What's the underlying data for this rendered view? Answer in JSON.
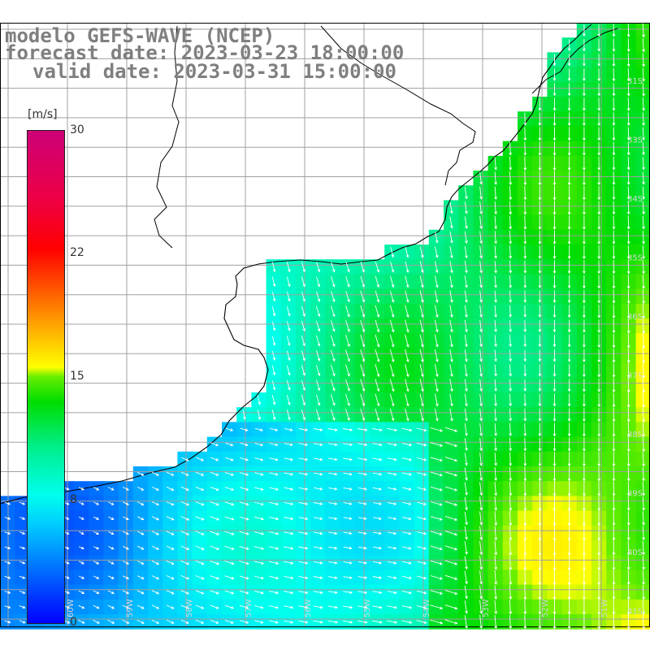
{
  "title": {
    "line1": "modelo GEFS-WAVE (NCEP)",
    "line2": "forecast date: 2023-03-23 18:00:00",
    "line3": "valid date: 2023-03-31 15:00:00"
  },
  "colorbar": {
    "unit": "[m/s]",
    "ticks": [
      {
        "label": "30",
        "value": 30
      },
      {
        "label": "22",
        "value": 22
      },
      {
        "label": "15",
        "value": 15
      },
      {
        "label": "8",
        "value": 8
      },
      {
        "label": "0",
        "value": 0
      }
    ],
    "min": 0,
    "max": 30
  },
  "map": {
    "variable": "wind speed",
    "lat_labels": [
      "31S",
      "33S",
      "34S",
      "35S",
      "36S",
      "37S",
      "38S",
      "39S",
      "40S",
      "41S"
    ],
    "lon_labels": [
      "60W",
      "59W",
      "58W",
      "57W",
      "56W",
      "55W",
      "54W",
      "53W",
      "52W",
      "51W"
    ],
    "colors": {
      "land": "#ffffff",
      "coast": "#000000",
      "grid": "#a0a0a0",
      "arrow": "#ffffff",
      "title": "#7f7f7f"
    }
  }
}
